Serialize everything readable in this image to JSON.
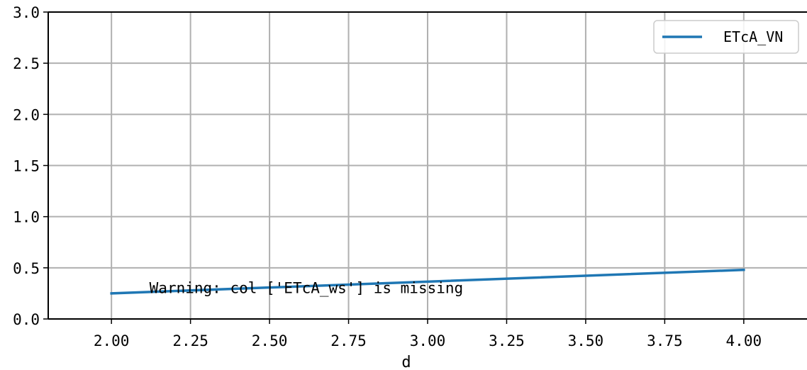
{
  "chart_data": {
    "type": "line",
    "title": "",
    "xlabel": "d",
    "ylabel": "",
    "xlim": [
      1.8,
      4.2
    ],
    "ylim": [
      0.0,
      3.0
    ],
    "xticks": [
      2.0,
      2.25,
      2.5,
      2.75,
      3.0,
      3.25,
      3.5,
      3.75,
      4.0
    ],
    "xtick_labels": [
      "2.00",
      "2.25",
      "2.50",
      "2.75",
      "3.00",
      "3.25",
      "3.50",
      "3.75",
      "4.00"
    ],
    "yticks": [
      0.0,
      0.5,
      1.0,
      1.5,
      2.0,
      2.5,
      3.0
    ],
    "ytick_labels": [
      "0.0",
      "0.5",
      "1.0",
      "1.5",
      "2.0",
      "2.5",
      "3.0"
    ],
    "grid": true,
    "legend_position": "top-right",
    "series": [
      {
        "name": "ETcA_VN",
        "color": "#1f77b4",
        "x": [
          2.0,
          4.0
        ],
        "y": [
          0.25,
          0.48
        ]
      }
    ],
    "annotations": [
      {
        "text": "Warning: col ['ETcA_ws'] is missing",
        "x": 2.12,
        "y": 0.3
      }
    ]
  }
}
